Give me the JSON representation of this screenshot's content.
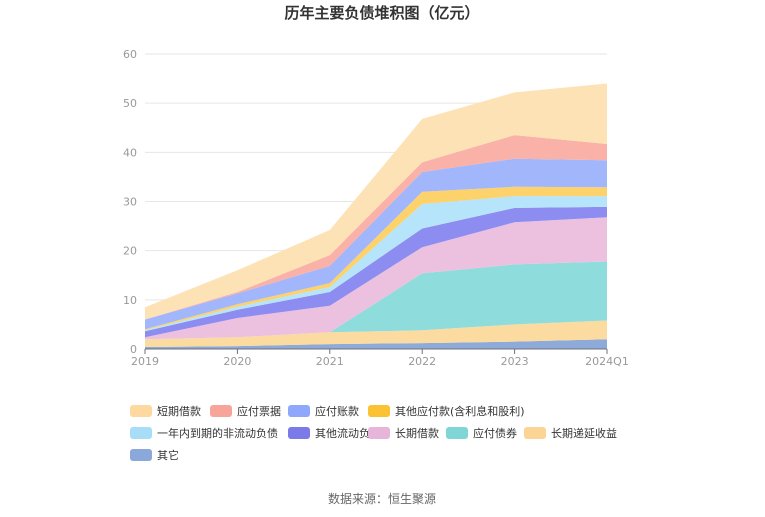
{
  "title": "历年主要负债堆积图（亿元）",
  "source": "数据来源：恒生聚源",
  "chart_data": {
    "type": "area",
    "stacked": true,
    "title": "历年主要负债堆积图（亿元）",
    "categories": [
      "2019",
      "2020",
      "2021",
      "2022",
      "2023",
      "2024Q1"
    ],
    "ylim": [
      0,
      60
    ],
    "yticks": [
      0,
      10,
      20,
      30,
      40,
      50,
      60
    ],
    "grid": true,
    "legend_position": "bottom",
    "series": [
      {
        "name": "其它",
        "color": "#8eaad9",
        "values": [
          0.4,
          0.6,
          1.0,
          1.2,
          1.5,
          2.0
        ]
      },
      {
        "name": "长期递延收益",
        "color": "#fbdb9f",
        "values": [
          1.6,
          1.8,
          2.4,
          2.6,
          3.5,
          3.8
        ]
      },
      {
        "name": "应付债券",
        "color": "#8fdcdc",
        "values": [
          0.0,
          0.0,
          0.0,
          11.6,
          12.2,
          12.0
        ]
      },
      {
        "name": "长期借款",
        "color": "#ecc1df",
        "values": [
          0.4,
          3.9,
          5.4,
          5.3,
          8.6,
          9.0
        ]
      },
      {
        "name": "其他流动负债",
        "color": "#8d8cf0",
        "values": [
          1.2,
          1.7,
          2.8,
          3.8,
          2.9,
          2.1
        ]
      },
      {
        "name": "一年内到期的非流动负债",
        "color": "#b6e4fa",
        "values": [
          0.2,
          0.6,
          1.0,
          5.0,
          2.4,
          2.2
        ]
      },
      {
        "name": "其他应付款(含利息和股利)",
        "color": "#fdd26a",
        "values": [
          0.2,
          0.5,
          0.8,
          2.5,
          1.9,
          1.8
        ]
      },
      {
        "name": "应付账款",
        "color": "#a2b6fc",
        "values": [
          2.0,
          2.2,
          3.5,
          4.0,
          5.7,
          5.5
        ]
      },
      {
        "name": "应付票据",
        "color": "#f9b1a8",
        "values": [
          0.0,
          0.3,
          2.2,
          2.0,
          4.8,
          3.3
        ]
      },
      {
        "name": "短期借款",
        "color": "#fde2b6",
        "values": [
          2.5,
          4.4,
          5.1,
          8.8,
          8.7,
          12.3
        ]
      }
    ],
    "legend_order": [
      "短期借款",
      "应付票据",
      "应付账款",
      "其他应付款(含利息和股利)",
      "一年内到期的非流动负债",
      "其他流动负债",
      "长期借款",
      "应付债券",
      "长期递延收益",
      "其它"
    ],
    "legend_colors": {
      "短期借款": "#fdd9a0",
      "应付票据": "#f7a59b",
      "应付账款": "#8fa8fb",
      "其他应付款(含利息和股利)": "#fbc234",
      "一年内到期的非流动负债": "#a8ddf7",
      "其他流动负债": "#7b7ae8",
      "长期借款": "#e7b4da",
      "应付债券": "#80d5d6",
      "长期递延收益": "#fcd595",
      "其它": "#8ba8da"
    }
  }
}
